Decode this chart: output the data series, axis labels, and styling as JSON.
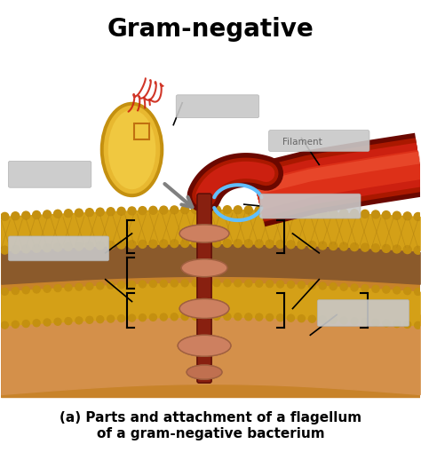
{
  "title": "Gram-negative",
  "subtitle_line1": "(a) Parts and attachment of a flagellum",
  "subtitle_line2": "of a gram-negative bacterium",
  "title_fontsize": 20,
  "subtitle_fontsize": 11,
  "bg_color": "#ffffff",
  "gold_color": "#d4a017",
  "gold_dark": "#b8880a",
  "brown_dark": "#8B5A2B",
  "brown_mid": "#c8832a",
  "red_dark": "#8B1010",
  "red_mid": "#CC2010",
  "rod_color": "#992010",
  "disk_color": "#cd8060",
  "blue_arrow": "#60BFFF",
  "gray_arrow": "#888888",
  "cell_gold": "#d4a017",
  "cell_inner": "#e8b830"
}
